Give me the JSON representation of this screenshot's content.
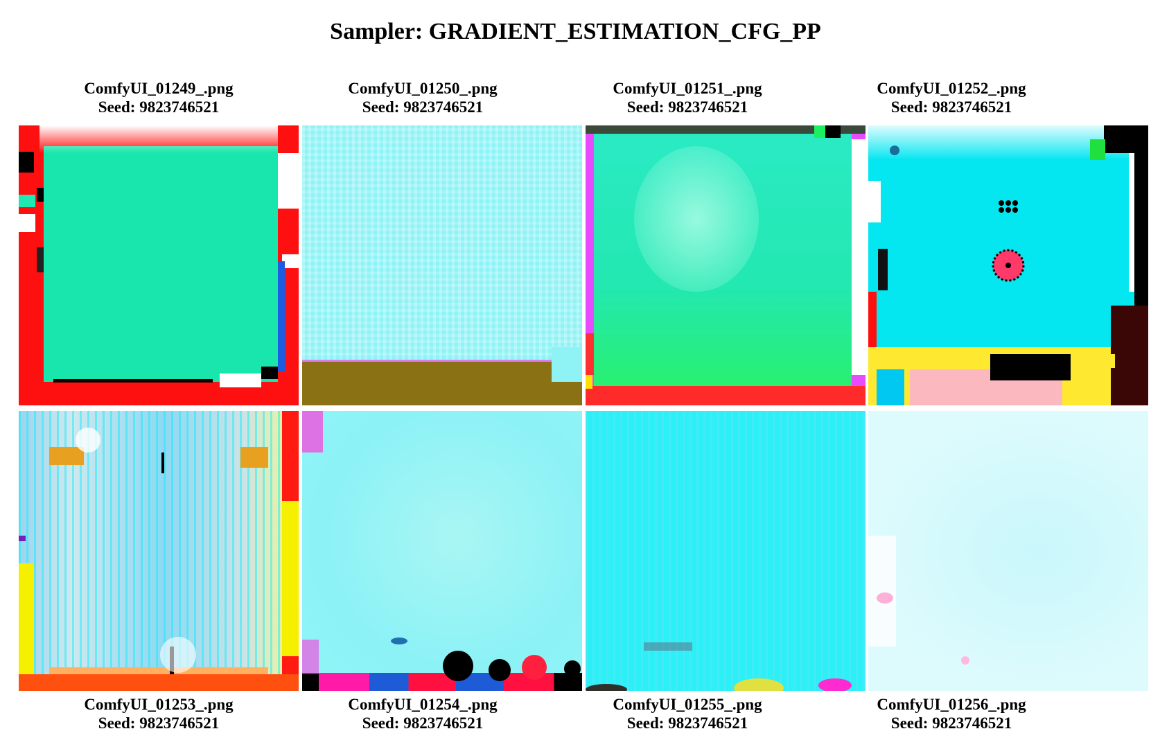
{
  "page": {
    "title": "Sampler: GRADIENT_ESTIMATION_CFG_PP"
  },
  "images": [
    {
      "filename": "ComfyUI_01249_.png",
      "seed_text": "Seed: 9823746521"
    },
    {
      "filename": "ComfyUI_01250_.png",
      "seed_text": "Seed: 9823746521"
    },
    {
      "filename": "ComfyUI_01251_.png",
      "seed_text": "Seed: 9823746521"
    },
    {
      "filename": "ComfyUI_01252_.png",
      "seed_text": "Seed: 9823746521"
    },
    {
      "filename": "ComfyUI_01253_.png",
      "seed_text": "Seed: 9823746521"
    },
    {
      "filename": "ComfyUI_01254_.png",
      "seed_text": "Seed: 9823746521"
    },
    {
      "filename": "ComfyUI_01255_.png",
      "seed_text": "Seed: 9823746521"
    },
    {
      "filename": "ComfyUI_01256_.png",
      "seed_text": "Seed: 9823746521"
    }
  ]
}
